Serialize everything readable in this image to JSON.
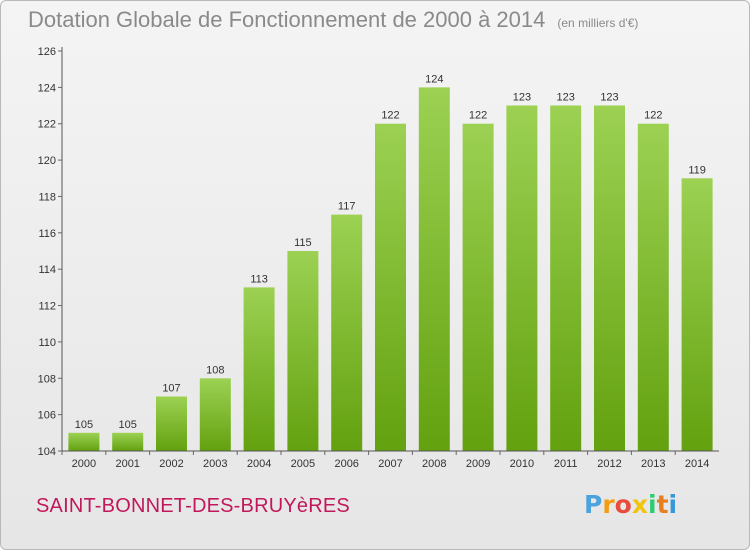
{
  "header": {
    "title": "Dotation Globale de Fonctionnement de 2000 à 2014",
    "subtitle": "(en milliers d'€)"
  },
  "footer": {
    "commune": "SAINT-BONNET-DES-BRUYèRES",
    "logo_text": "Proxiti",
    "logo_colors": [
      "#4aa3df",
      "#f39c12",
      "#e74c3c",
      "#f1c40f",
      "#2ecc71",
      "#e67e22",
      "#3498db"
    ]
  },
  "colors": {
    "bar_top": "#9cd153",
    "bar_bottom": "#63a10f",
    "axis": "#555555",
    "grid_tick": "#666666"
  },
  "chart_data": {
    "type": "bar",
    "title": "Dotation Globale de Fonctionnement de 2000 à 2014",
    "subtitle": "(en milliers d'€)",
    "categories": [
      "2000",
      "2001",
      "2002",
      "2003",
      "2004",
      "2005",
      "2006",
      "2007",
      "2008",
      "2009",
      "2010",
      "2011",
      "2012",
      "2013",
      "2014"
    ],
    "values": [
      105,
      105,
      107,
      108,
      113,
      115,
      117,
      122,
      124,
      122,
      123,
      123,
      123,
      122,
      119
    ],
    "ylim": [
      104,
      126
    ],
    "yticks": [
      104,
      106,
      108,
      110,
      112,
      114,
      116,
      118,
      120,
      122,
      124,
      126
    ],
    "xlabel": "",
    "ylabel": "",
    "grid": false,
    "data_labels": true
  }
}
